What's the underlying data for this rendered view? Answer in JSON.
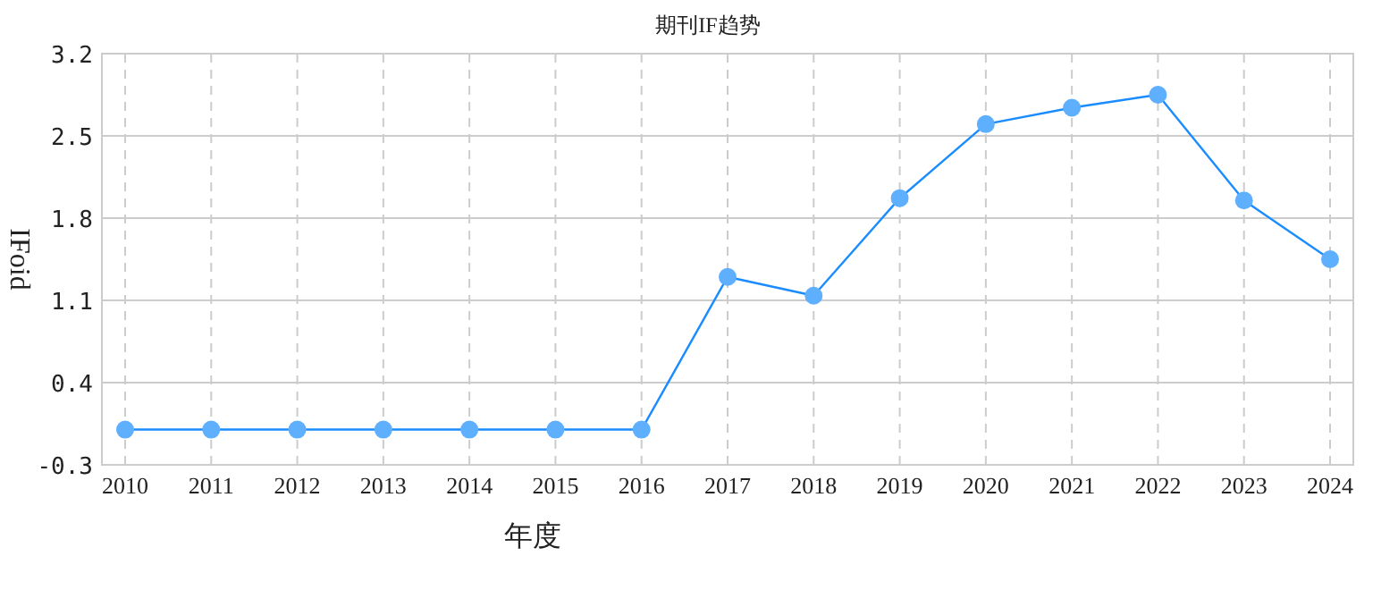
{
  "chart_data": {
    "type": "line",
    "title": "期刊IF趋势",
    "xlabel": "年度",
    "ylabel": "IFoid",
    "categories": [
      "2010",
      "2011",
      "2012",
      "2013",
      "2014",
      "2015",
      "2016",
      "2017",
      "2018",
      "2019",
      "2020",
      "2021",
      "2022",
      "2023",
      "2024"
    ],
    "series": [
      {
        "color": "#1a8cff",
        "values": [
          0,
          0,
          0,
          0,
          0,
          0,
          0,
          1.3,
          1.14,
          1.97,
          2.6,
          2.74,
          2.85,
          1.95,
          1.45
        ]
      }
    ],
    "ylim": [
      -0.3,
      3.2
    ],
    "yticks": [
      -0.3,
      0.4,
      1.1,
      1.8,
      2.5,
      3.2
    ],
    "grid": true,
    "marker": "circle",
    "line_style": "solid"
  }
}
